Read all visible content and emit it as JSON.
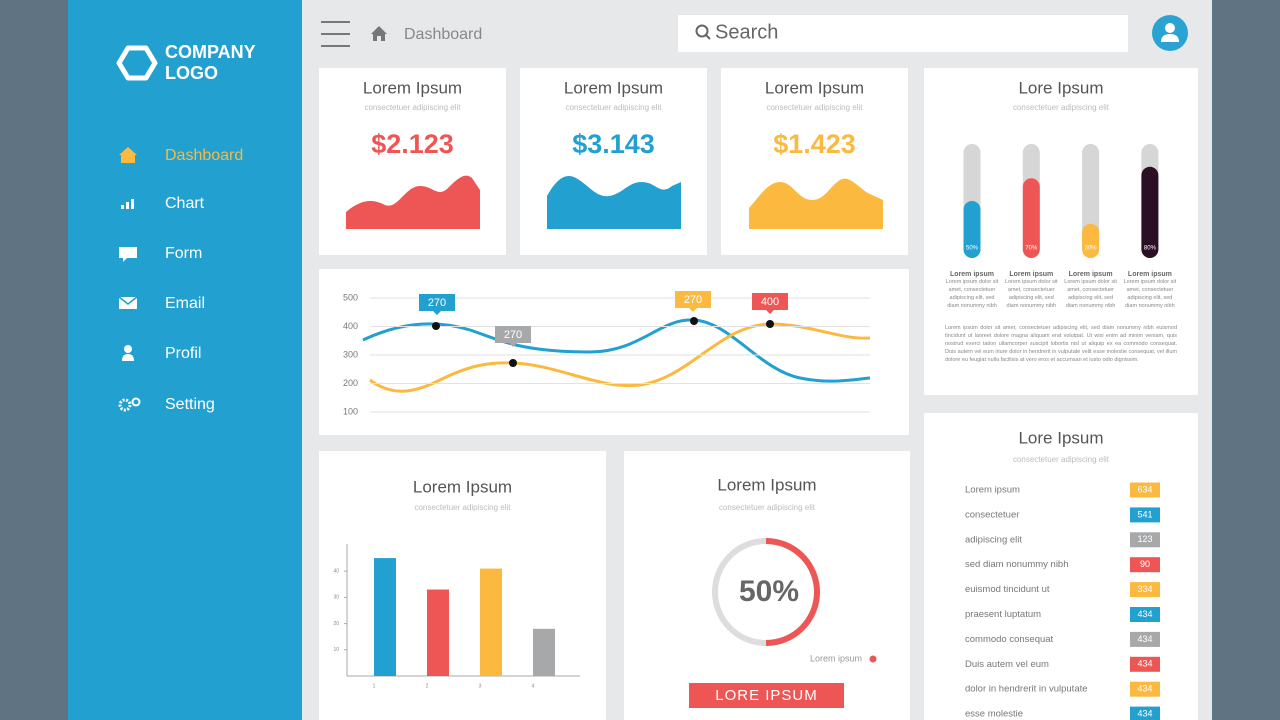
{
  "sidebar": {
    "logo": [
      "COMPANY",
      "LOGO"
    ],
    "nav": [
      {
        "label": "Dashboard",
        "active": true
      },
      {
        "label": "Chart",
        "active": false
      },
      {
        "label": "Form",
        "active": false
      },
      {
        "label": "Email",
        "active": false
      },
      {
        "label": "Profil",
        "active": false
      },
      {
        "label": "Setting",
        "active": false
      }
    ]
  },
  "topbar": {
    "breadcrumb": "Dashboard",
    "search": "Search"
  },
  "stat_cards": [
    {
      "title": "Lorem Ipsum",
      "subtitle": "consectetuer adipiscing elit",
      "value": "$2.123",
      "color": "#ee5656"
    },
    {
      "title": "Lorem Ipsum",
      "subtitle": "consectetuer adipiscing elit",
      "value": "$3.143",
      "color": "#22a0d0"
    },
    {
      "title": "Lorem Ipsum",
      "subtitle": "consectetuer adipiscing elit",
      "value": "$1.423",
      "color": "#fbb940"
    }
  ],
  "line_chart": {
    "ylim": [
      100,
      500
    ],
    "yticks": [
      500,
      400,
      300,
      200,
      100
    ],
    "callouts": [
      {
        "label": "270",
        "color": "#22a0d0"
      },
      {
        "label": "270",
        "color": "#a7a8aa"
      },
      {
        "label": "270",
        "color": "#fbb940"
      },
      {
        "label": "400",
        "color": "#ee5656"
      }
    ]
  },
  "progress_card": {
    "title": "Lore Ipsum",
    "subtitle": "consectetuer adipiscing elit",
    "ylim": [
      0,
      100
    ],
    "bars": [
      {
        "label": "Lorem ipsum",
        "value": 50,
        "value_label": "50%",
        "color": "#22a0d0",
        "text": "Lorem ipsum dolor sit amet, consectetuer adipiscing elit, sed diam nonummy nibh euismod tincidunt ut laoreet dolore"
      },
      {
        "label": "Lorem ipsum",
        "value": 70,
        "value_label": "70%",
        "color": "#ee5656",
        "text": "Lorem ipsum dolor sit amet, consectetuer adipiscing elit, sed diam nonummy nibh euismod tincidunt ut laoreet dolore"
      },
      {
        "label": "Lorem ipsum",
        "value": 30,
        "value_label": "30%",
        "color": "#fbb940",
        "text": "Lorem ipsum dolor sit amet, consectetuer adipiscing elit, sed diam nonummy nibh euismod tincidunt ut laoreet dolore"
      },
      {
        "label": "Lorem ipsum",
        "value": 80,
        "value_label": "80%",
        "color": "#2a0f25",
        "text": "Lorem ipsum dolor sit amet, consectetuer adipiscing elit, sed diam nonummy nibh euismod tincidunt ut laoreet dolore"
      }
    ],
    "paragraph": "Lorem ipsum dolor sit amet, consectetuer adipiscing elit, sed diam nonummy nibh euismod tincidunt ut laoreet dolore magna aliquam erat volutpat. Ut wisi enim ad minim veniam, quis nostrud exerci tation ullamcorper suscipit lobortis nisl ut aliquip ex ea commodo consequat. Duis autem vel eum iriure dolor in hendrerit in vulputate velit esse molestie consequat, vel illum dolore eu feugiat nulla facilisis at vero eros et accumsan et iusto odio dignissim."
  },
  "bar_card": {
    "title": "Lorem Ipsum",
    "subtitle": "consectetuer adipiscing elit",
    "categories": [
      "1",
      "2",
      "3",
      "4"
    ],
    "values": [
      45,
      33,
      41,
      18
    ],
    "colors": [
      "#22a0d0",
      "#ee5656",
      "#fbb940",
      "#a7a8aa"
    ],
    "ylim": [
      0,
      50
    ],
    "yticks": [
      10,
      20,
      30,
      40
    ]
  },
  "donut_card": {
    "title": "Lorem Ipsum",
    "subtitle": "consectetuer adipiscing elit",
    "value": 50,
    "value_label": "50%",
    "color": "#ee5656",
    "legend": "Lorem ipsum",
    "button": "LORE IPSUM"
  },
  "list_card": {
    "title": "Lore Ipsum",
    "subtitle": "consectetuer adipiscing elit",
    "rows": [
      {
        "label": "Lorem ipsum",
        "value": 634,
        "color": "#fbb940"
      },
      {
        "label": "consectetuer",
        "value": 541,
        "color": "#22a0d0"
      },
      {
        "label": "adipiscing elit",
        "value": 123,
        "color": "#a7a8aa"
      },
      {
        "label": "sed diam nonummy nibh",
        "value": 90,
        "color": "#ee5656"
      },
      {
        "label": "euismod tincidunt ut",
        "value": 334,
        "color": "#fbb940"
      },
      {
        "label": "praesent luptatum",
        "value": 434,
        "color": "#22a0d0"
      },
      {
        "label": "commodo consequat",
        "value": 434,
        "color": "#a7a8aa"
      },
      {
        "label": "Duis autem vel eum",
        "value": 434,
        "color": "#ee5656"
      },
      {
        "label": "dolor in hendrerit in vulputate",
        "value": 434,
        "color": "#fbb940"
      },
      {
        "label": "esse molestie",
        "value": 434,
        "color": "#22a0d0"
      }
    ]
  }
}
